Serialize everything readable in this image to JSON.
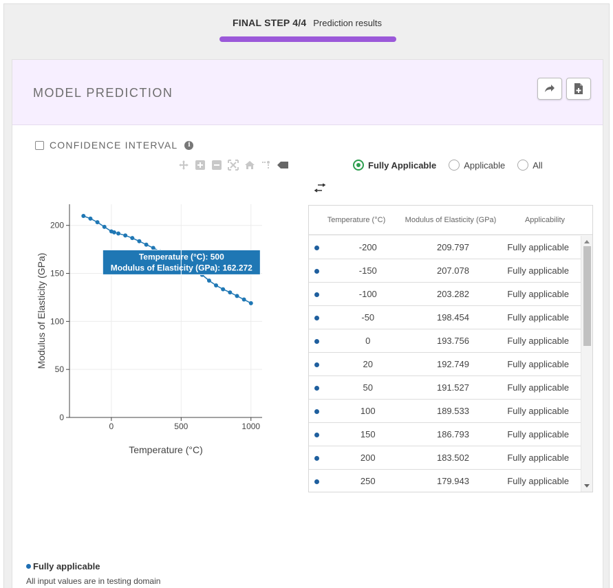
{
  "step": {
    "label": "FINAL STEP 4/4",
    "subtitle": "Prediction results"
  },
  "card": {
    "title": "MODEL PREDICTION"
  },
  "confidence": {
    "label": "CONFIDENCE INTERVAL",
    "info": "i"
  },
  "filters": [
    {
      "label": "Fully Applicable",
      "selected": true
    },
    {
      "label": "Applicable",
      "selected": false
    },
    {
      "label": "All",
      "selected": false
    }
  ],
  "colors": {
    "accent": "#9b59d9",
    "series": "#1f77b4",
    "radio": "#2e9e4f",
    "tooltip": "#1f77b4"
  },
  "table": {
    "headers": [
      "Temperature (°C)",
      "Modulus of Elasticity (GPa)",
      "Applicability"
    ],
    "rows": [
      {
        "temp": "-200",
        "modulus": "209.797",
        "app": "Fully applicable"
      },
      {
        "temp": "-150",
        "modulus": "207.078",
        "app": "Fully applicable"
      },
      {
        "temp": "-100",
        "modulus": "203.282",
        "app": "Fully applicable"
      },
      {
        "temp": "-50",
        "modulus": "198.454",
        "app": "Fully applicable"
      },
      {
        "temp": "0",
        "modulus": "193.756",
        "app": "Fully applicable"
      },
      {
        "temp": "20",
        "modulus": "192.749",
        "app": "Fully applicable"
      },
      {
        "temp": "50",
        "modulus": "191.527",
        "app": "Fully applicable"
      },
      {
        "temp": "100",
        "modulus": "189.533",
        "app": "Fully applicable"
      },
      {
        "temp": "150",
        "modulus": "186.793",
        "app": "Fully applicable"
      },
      {
        "temp": "200",
        "modulus": "183.502",
        "app": "Fully applicable"
      },
      {
        "temp": "250",
        "modulus": "179.943",
        "app": "Fully applicable"
      }
    ]
  },
  "legend": {
    "label": "Fully applicable",
    "description": "All input values are in testing domain"
  },
  "chart_data": {
    "type": "line",
    "title": "",
    "xlabel": "Temperature (°C)",
    "ylabel": "Modulus of Elasticity (GPa)",
    "xlim": [
      -300,
      1080
    ],
    "ylim": [
      0,
      222
    ],
    "xticks": [
      0,
      500,
      1000
    ],
    "yticks": [
      0,
      50,
      100,
      150,
      200
    ],
    "grid": true,
    "series": [
      {
        "x": [
          -200,
          -150,
          -100,
          -50,
          0,
          20,
          50,
          100,
          150,
          200,
          250,
          300,
          350,
          400,
          450,
          500,
          550,
          600,
          650,
          700,
          750,
          800,
          850,
          900,
          950,
          1000
        ],
        "y": [
          209.797,
          207.078,
          203.282,
          198.454,
          193.756,
          192.749,
          191.527,
          189.533,
          186.793,
          183.502,
          179.943,
          176.5,
          172.9,
          169.3,
          165.8,
          162.272,
          158.6,
          154.5,
          148.5,
          142.5,
          137.5,
          133.5,
          130.2,
          126.5,
          122.8,
          119.0
        ]
      }
    ],
    "tooltip": {
      "x": 500,
      "y": 162.272,
      "line1": "Temperature (°C): 500",
      "line2": "Modulus of Elasticity (GPa): 162.272"
    }
  }
}
